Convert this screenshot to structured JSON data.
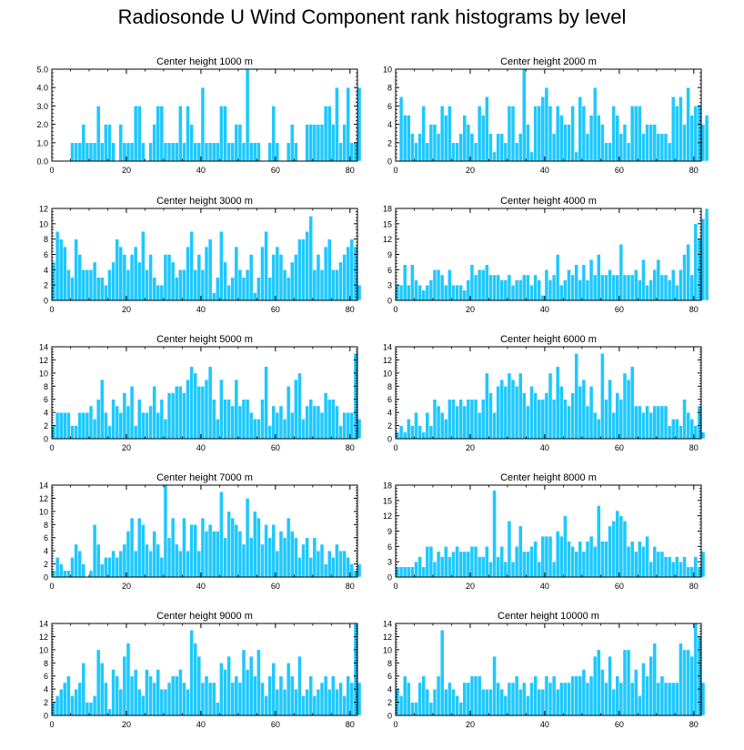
{
  "title": "Radiosonde U Wind Component rank histograms by level",
  "bar_color": "#1ec8ff",
  "axis_color": "#000000",
  "chart_data": [
    {
      "type": "bar",
      "title": "Center height 1000 m",
      "xlim": [
        0,
        82
      ],
      "x_ticks": [
        0,
        20,
        40,
        60,
        80
      ],
      "ylim": [
        0,
        5
      ],
      "y_ticks": [
        0,
        1,
        2,
        3,
        4,
        5
      ],
      "y_tick_labels": [
        "0.0",
        "1.0",
        "2.0",
        "3.0",
        "4.0",
        "5.0"
      ],
      "values": [
        0,
        0,
        0,
        0,
        0,
        1,
        1,
        1,
        2,
        1,
        1,
        1,
        3,
        1,
        2,
        2,
        1,
        0,
        2,
        1,
        1,
        1,
        3,
        3,
        1,
        0,
        1,
        2,
        3,
        3,
        1,
        1,
        1,
        1,
        3,
        1,
        3,
        2,
        1,
        1,
        4,
        1,
        1,
        1,
        1,
        3,
        3,
        1,
        1,
        2,
        2,
        1,
        5,
        1,
        1,
        1,
        0,
        0,
        1,
        3,
        1,
        0,
        0,
        1,
        2,
        1,
        0,
        0,
        2,
        2,
        2,
        2,
        2,
        3,
        3,
        2,
        4,
        1,
        2,
        4,
        1,
        1,
        4
      ]
    },
    {
      "type": "bar",
      "title": "Center height 2000 m",
      "xlim": [
        0,
        82
      ],
      "x_ticks": [
        0,
        20,
        40,
        60,
        80
      ],
      "ylim": [
        0,
        10
      ],
      "y_ticks": [
        0,
        2,
        4,
        6,
        8,
        10
      ],
      "y_tick_labels": [
        "0",
        "2",
        "4",
        "6",
        "8",
        "10"
      ],
      "values": [
        0,
        7,
        5,
        5,
        3,
        2,
        3,
        6,
        2,
        4,
        4,
        3,
        6,
        5,
        6,
        2,
        2,
        3,
        5,
        4,
        3,
        2,
        6,
        5,
        7,
        3,
        1,
        3,
        3,
        2,
        6,
        6,
        2,
        3,
        10,
        4,
        1,
        6,
        6,
        7,
        8,
        6,
        3,
        6,
        5,
        4,
        4,
        6,
        1,
        7,
        6,
        3,
        5,
        8,
        5,
        4,
        2,
        2,
        6,
        5,
        3,
        4,
        2,
        6,
        6,
        6,
        3,
        4,
        4,
        4,
        3,
        3,
        3,
        2,
        7,
        6,
        7,
        4,
        8,
        5,
        6,
        6,
        4,
        5
      ]
    },
    {
      "type": "bar",
      "title": "Center height 3000 m",
      "xlim": [
        0,
        82
      ],
      "x_ticks": [
        0,
        20,
        40,
        60,
        80
      ],
      "ylim": [
        0,
        12
      ],
      "y_ticks": [
        0,
        2,
        4,
        6,
        8,
        10,
        12
      ],
      "y_tick_labels": [
        "0",
        "2",
        "4",
        "6",
        "8",
        "10",
        "12"
      ],
      "values": [
        5,
        9,
        8,
        7,
        4,
        3,
        8,
        6,
        4,
        4,
        4,
        5,
        3,
        3,
        2,
        4,
        5,
        8,
        7,
        6,
        4,
        6,
        7,
        5,
        9,
        4,
        6,
        3,
        2,
        2,
        6,
        6,
        5,
        3,
        4,
        4,
        7,
        9,
        4,
        6,
        4,
        7,
        8,
        1,
        3,
        9,
        5,
        2,
        3,
        7,
        4,
        3,
        4,
        6,
        1,
        3,
        7,
        9,
        3,
        6,
        7,
        6,
        4,
        3,
        5,
        6,
        8,
        8,
        9,
        11,
        4,
        6,
        4,
        7,
        8,
        4,
        4,
        5,
        6,
        7,
        8,
        7,
        2
      ]
    },
    {
      "type": "bar",
      "title": "Center height 4000 m",
      "xlim": [
        0,
        82
      ],
      "x_ticks": [
        0,
        20,
        40,
        60,
        80
      ],
      "ylim": [
        0,
        18
      ],
      "y_ticks": [
        0,
        3,
        6,
        9,
        12,
        15,
        18
      ],
      "y_tick_labels": [
        "0",
        "3",
        "6",
        "9",
        "12",
        "15",
        "18"
      ],
      "values": [
        3,
        3,
        7,
        3,
        7,
        4,
        3,
        2,
        3,
        4,
        6,
        6,
        5,
        3,
        6,
        3,
        3,
        3,
        2,
        4,
        7,
        5,
        6,
        6,
        7,
        5,
        5,
        5,
        4,
        4,
        5,
        3,
        4,
        4,
        5,
        5,
        3,
        5,
        4,
        1,
        6,
        4,
        5,
        9,
        3,
        4,
        6,
        5,
        7,
        4,
        7,
        4,
        8,
        5,
        9,
        5,
        5,
        6,
        5,
        5,
        11,
        5,
        5,
        5,
        6,
        4,
        8,
        3,
        4,
        6,
        8,
        5,
        5,
        4,
        6,
        3,
        6,
        9,
        11,
        5,
        15,
        12,
        16,
        18
      ]
    },
    {
      "type": "bar",
      "title": "Center height 5000 m",
      "xlim": [
        0,
        82
      ],
      "x_ticks": [
        0,
        20,
        40,
        60,
        80
      ],
      "ylim": [
        0,
        14
      ],
      "y_ticks": [
        0,
        2,
        4,
        6,
        8,
        10,
        12,
        14
      ],
      "y_tick_labels": [
        "0",
        "2",
        "4",
        "6",
        "8",
        "10",
        "12",
        "14"
      ],
      "values": [
        2,
        4,
        4,
        4,
        4,
        2,
        2,
        4,
        4,
        4,
        5,
        3,
        6,
        9,
        4,
        2,
        6,
        5,
        4,
        7,
        5,
        8,
        2,
        6,
        4,
        4,
        5,
        8,
        4,
        6,
        3,
        7,
        7,
        8,
        8,
        7,
        9,
        11,
        10,
        8,
        8,
        9,
        11,
        6,
        3,
        9,
        6,
        6,
        5,
        9,
        5,
        6,
        6,
        4,
        3,
        3,
        6,
        11,
        2,
        5,
        4,
        5,
        3,
        8,
        4,
        9,
        10,
        3,
        5,
        6,
        5,
        5,
        4,
        7,
        6,
        6,
        5,
        2,
        4,
        4,
        4,
        13,
        3
      ]
    },
    {
      "type": "bar",
      "title": "Center height 6000 m",
      "xlim": [
        0,
        82
      ],
      "x_ticks": [
        0,
        20,
        40,
        60,
        80
      ],
      "ylim": [
        0,
        14
      ],
      "y_ticks": [
        0,
        2,
        4,
        6,
        8,
        10,
        12,
        14
      ],
      "y_tick_labels": [
        "0",
        "2",
        "4",
        "6",
        "8",
        "10",
        "12",
        "14"
      ],
      "values": [
        1,
        2,
        1,
        3,
        2,
        4,
        2,
        1,
        4,
        2,
        6,
        5,
        4,
        3,
        6,
        6,
        5,
        6,
        5,
        6,
        6,
        6,
        4,
        6,
        10,
        7,
        4,
        8,
        9,
        8,
        10,
        9,
        8,
        10,
        7,
        5,
        8,
        7,
        6,
        6,
        7,
        10,
        6,
        11,
        8,
        6,
        5,
        7,
        13,
        8,
        9,
        5,
        8,
        4,
        3,
        13,
        6,
        9,
        4,
        7,
        6,
        10,
        9,
        11,
        5,
        5,
        4,
        5,
        4,
        5,
        5,
        5,
        5,
        2,
        3,
        3,
        2,
        6,
        4,
        3,
        2,
        5,
        1
      ]
    },
    {
      "type": "bar",
      "title": "Center height 7000 m",
      "xlim": [
        0,
        82
      ],
      "x_ticks": [
        0,
        20,
        40,
        60,
        80
      ],
      "ylim": [
        0,
        14
      ],
      "y_ticks": [
        0,
        2,
        4,
        6,
        8,
        10,
        12,
        14
      ],
      "y_tick_labels": [
        "0",
        "2",
        "4",
        "6",
        "8",
        "10",
        "12",
        "14"
      ],
      "values": [
        1,
        3,
        2,
        1,
        1,
        3,
        5,
        4,
        2,
        0,
        1,
        8,
        5,
        2,
        3,
        3,
        4,
        3,
        4,
        5,
        7,
        9,
        4,
        9,
        8,
        5,
        4,
        7,
        5,
        3,
        14,
        6,
        9,
        5,
        4,
        9,
        4,
        8,
        8,
        4,
        9,
        7,
        8,
        7,
        7,
        13,
        6,
        10,
        9,
        8,
        7,
        5,
        12,
        6,
        10,
        9,
        5,
        8,
        6,
        8,
        4,
        7,
        6,
        9,
        7,
        6,
        3,
        5,
        6,
        3,
        6,
        4,
        5,
        2,
        4,
        3,
        5,
        4,
        4,
        3,
        2,
        1,
        2
      ]
    },
    {
      "type": "bar",
      "title": "Center height 8000 m",
      "xlim": [
        0,
        82
      ],
      "x_ticks": [
        0,
        20,
        40,
        60,
        80
      ],
      "ylim": [
        0,
        18
      ],
      "y_ticks": [
        0,
        3,
        6,
        9,
        12,
        15,
        18
      ],
      "y_tick_labels": [
        "0",
        "3",
        "6",
        "9",
        "12",
        "15",
        "18"
      ],
      "values": [
        2,
        2,
        2,
        2,
        2,
        3,
        4,
        2,
        6,
        6,
        3,
        5,
        4,
        6,
        4,
        5,
        6,
        5,
        5,
        5,
        6,
        6,
        4,
        4,
        6,
        3,
        17,
        4,
        6,
        3,
        11,
        3,
        6,
        10,
        5,
        5,
        6,
        7,
        3,
        8,
        8,
        8,
        3,
        9,
        8,
        12,
        7,
        6,
        5,
        7,
        5,
        7,
        8,
        6,
        14,
        7,
        7,
        10,
        11,
        13,
        12,
        11,
        6,
        7,
        5,
        7,
        6,
        8,
        3,
        6,
        5,
        5,
        4,
        4,
        3,
        4,
        3,
        4,
        2,
        2,
        4,
        2,
        5
      ]
    },
    {
      "type": "bar",
      "title": "Center height 9000 m",
      "xlim": [
        0,
        82
      ],
      "x_ticks": [
        0,
        20,
        40,
        60,
        80
      ],
      "ylim": [
        0,
        14
      ],
      "y_ticks": [
        0,
        2,
        4,
        6,
        8,
        10,
        12,
        14
      ],
      "y_tick_labels": [
        "0",
        "2",
        "4",
        "6",
        "8",
        "10",
        "12",
        "14"
      ],
      "values": [
        2,
        3,
        4,
        5,
        6,
        3,
        4,
        5,
        8,
        2,
        2,
        3,
        10,
        8,
        5,
        1,
        7,
        6,
        4,
        9,
        11,
        6,
        7,
        4,
        3,
        7,
        6,
        5,
        7,
        4,
        4,
        5,
        6,
        6,
        7,
        5,
        4,
        13,
        11,
        9,
        5,
        6,
        5,
        5,
        2,
        8,
        7,
        9,
        5,
        6,
        5,
        10,
        7,
        9,
        6,
        10,
        5,
        3,
        6,
        8,
        4,
        6,
        4,
        8,
        6,
        4,
        9,
        3,
        4,
        6,
        3,
        4,
        5,
        6,
        4,
        6,
        4,
        5,
        3,
        6,
        5,
        14,
        5
      ]
    },
    {
      "type": "bar",
      "title": "Center height 10000 m",
      "xlim": [
        0,
        82
      ],
      "x_ticks": [
        0,
        20,
        40,
        60,
        80
      ],
      "ylim": [
        0,
        14
      ],
      "y_ticks": [
        0,
        2,
        4,
        6,
        8,
        10,
        12,
        14
      ],
      "y_tick_labels": [
        "0",
        "2",
        "4",
        "6",
        "8",
        "10",
        "12",
        "14"
      ],
      "values": [
        4,
        3,
        6,
        5,
        2,
        2,
        5,
        6,
        4,
        2,
        4,
        6,
        13,
        4,
        5,
        4,
        3,
        2,
        5,
        5,
        6,
        6,
        6,
        4,
        4,
        4,
        9,
        5,
        4,
        3,
        5,
        5,
        6,
        4,
        5,
        3,
        5,
        6,
        4,
        4,
        6,
        5,
        6,
        4,
        5,
        5,
        5,
        6,
        6,
        6,
        7,
        5,
        6,
        9,
        10,
        7,
        5,
        9,
        4,
        6,
        5,
        10,
        10,
        5,
        7,
        3,
        8,
        6,
        9,
        11,
        5,
        6,
        5,
        5,
        5,
        5,
        11,
        10,
        10,
        9,
        14,
        12,
        5
      ]
    }
  ]
}
